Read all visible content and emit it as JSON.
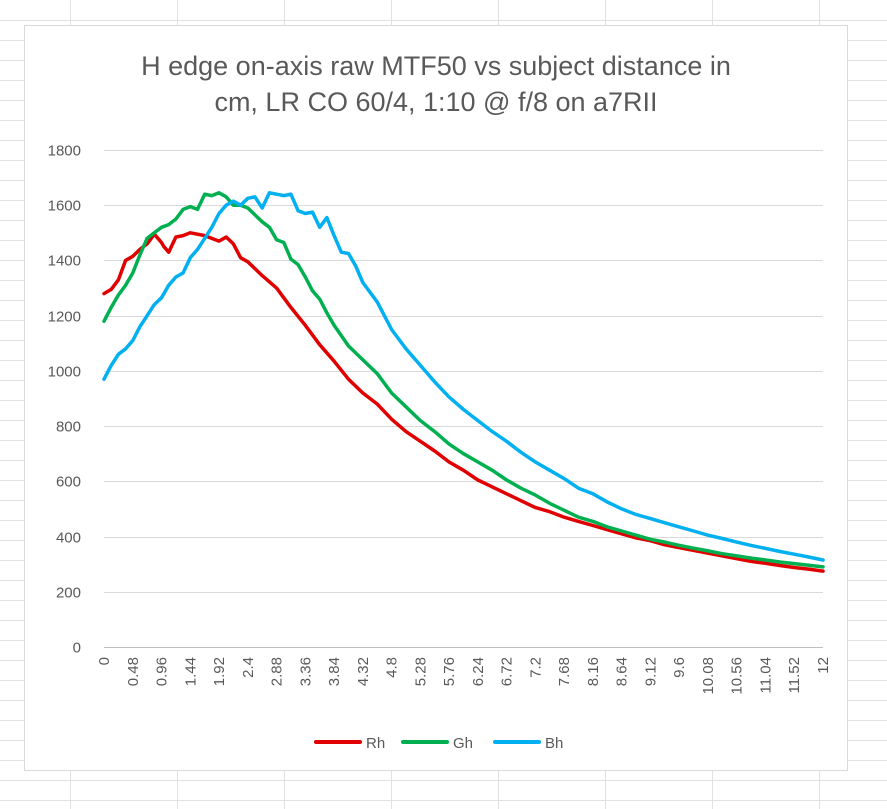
{
  "chart_data": {
    "type": "line",
    "title_lines": [
      "H edge on-axis raw MTF50 vs subject distance in",
      "cm, LR CO 60/4, 1:10 @ f/8 on a7RII"
    ],
    "xlabel": "",
    "ylabel": "",
    "ylim": [
      0,
      1800
    ],
    "yticks": [
      0,
      200,
      400,
      600,
      800,
      1000,
      1200,
      1400,
      1600,
      1800
    ],
    "xlim": [
      0,
      12
    ],
    "xtick_labels": [
      "0",
      "0.48",
      "0.96",
      "1.44",
      "1.92",
      "2.4",
      "2.88",
      "3.36",
      "3.84",
      "4.32",
      "4.8",
      "5.28",
      "5.76",
      "6.24",
      "6.72",
      "7.2",
      "7.68",
      "8.16",
      "8.64",
      "9.12",
      "9.6",
      "10.08",
      "10.56",
      "11.04",
      "11.52",
      "12"
    ],
    "grid": "horizontal",
    "legend_position": "bottom",
    "series": [
      {
        "name": "Rh",
        "color": "#e00000",
        "x": [
          0,
          0.12,
          0.24,
          0.36,
          0.48,
          0.6,
          0.72,
          0.84,
          0.96,
          1.0,
          1.08,
          1.2,
          1.32,
          1.44,
          1.56,
          1.68,
          1.8,
          1.92,
          2.04,
          2.16,
          2.28,
          2.4,
          2.64,
          2.88,
          3.12,
          3.36,
          3.6,
          3.84,
          4.08,
          4.32,
          4.56,
          4.8,
          5.04,
          5.28,
          5.52,
          5.76,
          6.0,
          6.24,
          6.48,
          6.72,
          6.96,
          7.2,
          7.44,
          7.68,
          7.92,
          8.16,
          8.4,
          8.64,
          8.88,
          9.12,
          9.36,
          9.6,
          9.84,
          10.08,
          10.32,
          10.56,
          10.8,
          11.04,
          11.28,
          11.52,
          11.76,
          12.0
        ],
        "values": [
          1280,
          1295,
          1330,
          1400,
          1415,
          1440,
          1460,
          1495,
          1465,
          1450,
          1430,
          1485,
          1490,
          1500,
          1495,
          1490,
          1480,
          1470,
          1485,
          1460,
          1410,
          1395,
          1345,
          1300,
          1230,
          1165,
          1095,
          1035,
          970,
          920,
          880,
          825,
          780,
          745,
          710,
          670,
          640,
          605,
          580,
          555,
          530,
          505,
          490,
          470,
          455,
          440,
          425,
          410,
          395,
          385,
          370,
          360,
          350,
          340,
          330,
          320,
          310,
          303,
          295,
          288,
          282,
          275
        ]
      },
      {
        "name": "Gh",
        "color": "#00b050",
        "x": [
          0,
          0.12,
          0.24,
          0.36,
          0.48,
          0.6,
          0.72,
          0.84,
          0.96,
          1.08,
          1.2,
          1.32,
          1.44,
          1.56,
          1.68,
          1.8,
          1.92,
          2.04,
          2.16,
          2.28,
          2.4,
          2.52,
          2.64,
          2.76,
          2.88,
          3.0,
          3.12,
          3.24,
          3.36,
          3.48,
          3.6,
          3.72,
          3.84,
          4.08,
          4.32,
          4.56,
          4.8,
          5.04,
          5.28,
          5.52,
          5.76,
          6.0,
          6.24,
          6.48,
          6.72,
          6.96,
          7.2,
          7.44,
          7.68,
          7.92,
          8.16,
          8.4,
          8.64,
          8.88,
          9.12,
          9.36,
          9.6,
          9.84,
          10.08,
          10.32,
          10.56,
          10.8,
          11.04,
          11.28,
          11.52,
          11.76,
          12.0
        ],
        "values": [
          1180,
          1230,
          1275,
          1310,
          1355,
          1420,
          1480,
          1500,
          1520,
          1530,
          1550,
          1585,
          1595,
          1585,
          1640,
          1635,
          1645,
          1630,
          1600,
          1600,
          1590,
          1565,
          1540,
          1520,
          1475,
          1465,
          1405,
          1385,
          1340,
          1290,
          1260,
          1210,
          1165,
          1090,
          1040,
          990,
          920,
          870,
          820,
          780,
          735,
          700,
          670,
          640,
          605,
          575,
          550,
          520,
          495,
          470,
          455,
          435,
          420,
          405,
          390,
          380,
          368,
          358,
          348,
          338,
          330,
          322,
          315,
          308,
          302,
          296,
          290
        ]
      },
      {
        "name": "Bh",
        "color": "#00b0f0",
        "x": [
          0,
          0.12,
          0.24,
          0.36,
          0.48,
          0.6,
          0.72,
          0.84,
          0.96,
          1.08,
          1.2,
          1.32,
          1.44,
          1.56,
          1.68,
          1.8,
          1.92,
          2.04,
          2.16,
          2.28,
          2.4,
          2.52,
          2.64,
          2.76,
          2.88,
          3.0,
          3.12,
          3.24,
          3.36,
          3.48,
          3.6,
          3.72,
          3.84,
          3.96,
          4.08,
          4.2,
          4.32,
          4.56,
          4.8,
          5.04,
          5.28,
          5.52,
          5.76,
          6.0,
          6.24,
          6.48,
          6.72,
          6.96,
          7.2,
          7.44,
          7.68,
          7.92,
          8.16,
          8.4,
          8.64,
          8.88,
          9.12,
          9.36,
          9.6,
          9.84,
          10.08,
          10.32,
          10.56,
          10.8,
          11.04,
          11.28,
          11.52,
          11.76,
          12.0
        ],
        "values": [
          970,
          1020,
          1060,
          1080,
          1110,
          1160,
          1200,
          1240,
          1265,
          1310,
          1340,
          1355,
          1410,
          1440,
          1480,
          1520,
          1570,
          1600,
          1615,
          1600,
          1625,
          1630,
          1590,
          1645,
          1640,
          1635,
          1640,
          1580,
          1570,
          1575,
          1520,
          1555,
          1490,
          1430,
          1425,
          1380,
          1320,
          1250,
          1150,
          1080,
          1020,
          960,
          905,
          860,
          820,
          780,
          745,
          705,
          670,
          640,
          610,
          575,
          555,
          525,
          500,
          480,
          465,
          450,
          435,
          420,
          405,
          393,
          380,
          368,
          357,
          346,
          336,
          326,
          315
        ]
      }
    ]
  }
}
